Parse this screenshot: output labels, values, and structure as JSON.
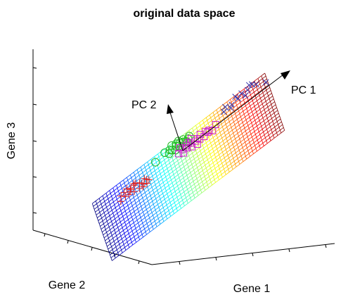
{
  "chart_data": {
    "type": "scatter",
    "title": "original data space",
    "axes": {
      "x": "Gene 1",
      "y": "Gene 2",
      "z": "Gene 3"
    },
    "grid": false,
    "arrows": [
      {
        "name": "PC 1"
      },
      {
        "name": "PC 2"
      }
    ],
    "plane": {
      "colormap": "jet",
      "colored_along": "PC 1"
    },
    "series": [
      {
        "marker": "plus",
        "color": "#dd2222",
        "points": [
          [
            -0.7,
            -0.1
          ],
          [
            -0.74,
            0.05
          ],
          [
            -0.63,
            0.02
          ],
          [
            -0.66,
            -0.12
          ],
          [
            -0.58,
            0.08
          ],
          [
            -0.52,
            0.02
          ],
          [
            -0.5,
            -0.08
          ],
          [
            -0.6,
            -0.17
          ],
          [
            -0.56,
            0.12
          ],
          [
            -0.7,
            0.1
          ],
          [
            -0.44,
            -0.06
          ],
          [
            -0.46,
            0.04
          ],
          [
            -0.64,
            -0.06
          ],
          [
            -0.76,
            -0.16
          ],
          [
            -0.48,
            -0.16
          ],
          [
            -0.54,
            -0.2
          ],
          [
            -0.5,
            -0.24
          ],
          [
            -0.42,
            -0.14
          ],
          [
            -0.58,
            0.15
          ],
          [
            -0.62,
            0.06
          ],
          [
            -0.66,
            0.16
          ],
          [
            -0.45,
            -0.22
          ]
        ]
      },
      {
        "marker": "circle",
        "color": "#22bb22",
        "points": [
          [
            -0.18,
            0.45
          ],
          [
            -0.1,
            0.33
          ],
          [
            -0.05,
            0.37
          ],
          [
            -0.02,
            0.3
          ],
          [
            0.0,
            0.38
          ],
          [
            0.03,
            0.33
          ],
          [
            -0.07,
            0.24
          ],
          [
            0.06,
            0.27
          ],
          [
            -0.14,
            0.28
          ],
          [
            -0.04,
            0.46
          ],
          [
            0.04,
            0.42
          ],
          [
            0.09,
            0.31
          ],
          [
            -0.01,
            0.5
          ],
          [
            0.11,
            0.37
          ],
          [
            -0.3,
            0.35
          ],
          [
            -0.12,
            0.4
          ],
          [
            0.07,
            0.22
          ],
          [
            -0.09,
            0.52
          ]
        ]
      },
      {
        "marker": "square",
        "color": "#cc22cc",
        "points": [
          [
            0.05,
            0.1
          ],
          [
            0.1,
            0.06
          ],
          [
            0.0,
            0.05
          ],
          [
            -0.05,
            0.0
          ],
          [
            0.15,
            0.0
          ],
          [
            0.2,
            -0.05
          ],
          [
            0.25,
            -0.08
          ],
          [
            0.3,
            -0.02
          ],
          [
            0.0,
            -0.12
          ],
          [
            0.35,
            -0.1
          ],
          [
            0.05,
            -0.02
          ],
          [
            0.1,
            -0.12
          ],
          [
            0.18,
            0.03
          ],
          [
            0.28,
            0.08
          ],
          [
            0.22,
            0.12
          ],
          [
            0.08,
            0.15
          ],
          [
            -0.02,
            0.2
          ],
          [
            0.12,
            0.22
          ],
          [
            0.32,
            0.02
          ],
          [
            0.4,
            0.05
          ],
          [
            0.16,
            -0.18
          ]
        ]
      },
      {
        "marker": "x",
        "color": "#3333aa",
        "points": [
          [
            0.7,
            0.4
          ],
          [
            0.75,
            0.5
          ],
          [
            0.82,
            0.45
          ],
          [
            0.62,
            0.35
          ],
          [
            0.68,
            0.55
          ],
          [
            0.88,
            0.55
          ],
          [
            0.55,
            0.45
          ],
          [
            0.6,
            0.25
          ],
          [
            0.78,
            0.3
          ],
          [
            0.92,
            0.42
          ],
          [
            0.52,
            0.3
          ],
          [
            0.85,
            0.6
          ],
          [
            1.02,
            0.22
          ]
        ]
      }
    ]
  }
}
